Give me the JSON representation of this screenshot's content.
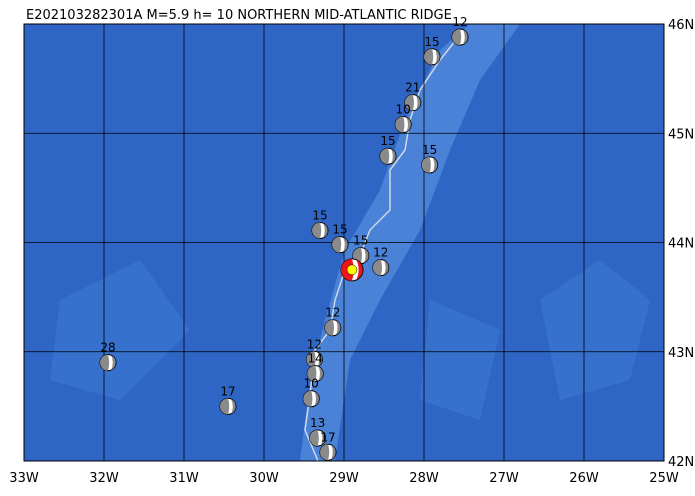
{
  "map": {
    "title": "E202103282301A M=5.9 h= 10 NORTHERN MID-ATLANTIC RIDGE",
    "lon_range": [
      -33,
      -25
    ],
    "lat_range": [
      42,
      46
    ],
    "lon_ticks": [
      {
        "value": -33,
        "label": "33W"
      },
      {
        "value": -32,
        "label": "32W"
      },
      {
        "value": -31,
        "label": "31W"
      },
      {
        "value": -30,
        "label": "30W"
      },
      {
        "value": -29,
        "label": "29W"
      },
      {
        "value": -28,
        "label": "28W"
      },
      {
        "value": -27,
        "label": "27W"
      },
      {
        "value": -26,
        "label": "26W"
      },
      {
        "value": -25,
        "label": "25W"
      }
    ],
    "lat_ticks": [
      {
        "value": 42,
        "label": "42N"
      },
      {
        "value": 43,
        "label": "43N"
      },
      {
        "value": 44,
        "label": "44N"
      },
      {
        "value": 45,
        "label": "45N"
      },
      {
        "value": 46,
        "label": "46N"
      }
    ],
    "main_event": {
      "lon": -28.9,
      "lat": 43.75
    },
    "events": [
      {
        "lon": -31.95,
        "lat": 42.9,
        "depth": 28
      },
      {
        "lon": -30.45,
        "lat": 42.5,
        "depth": 17
      },
      {
        "lon": -29.3,
        "lat": 44.11,
        "depth": 15
      },
      {
        "lon": -29.05,
        "lat": 43.98,
        "depth": 15
      },
      {
        "lon": -29.37,
        "lat": 42.93,
        "depth": 12
      },
      {
        "lon": -29.36,
        "lat": 42.8,
        "depth": 14
      },
      {
        "lon": -29.41,
        "lat": 42.57,
        "depth": 10
      },
      {
        "lon": -29.33,
        "lat": 42.21,
        "depth": 13
      },
      {
        "lon": -29.2,
        "lat": 42.08,
        "depth": 17
      },
      {
        "lon": -29.14,
        "lat": 43.22,
        "depth": 12
      },
      {
        "lon": -28.54,
        "lat": 43.77,
        "depth": 12
      },
      {
        "lon": -28.79,
        "lat": 43.88,
        "depth": 15
      },
      {
        "lon": -28.45,
        "lat": 44.79,
        "depth": 15
      },
      {
        "lon": -27.93,
        "lat": 44.71,
        "depth": 15
      },
      {
        "lon": -27.55,
        "lat": 45.88,
        "depth": 12
      },
      {
        "lon": -27.9,
        "lat": 45.7,
        "depth": 15
      },
      {
        "lon": -28.14,
        "lat": 45.28,
        "depth": 21
      },
      {
        "lon": -28.26,
        "lat": 45.08,
        "depth": 10
      }
    ]
  }
}
